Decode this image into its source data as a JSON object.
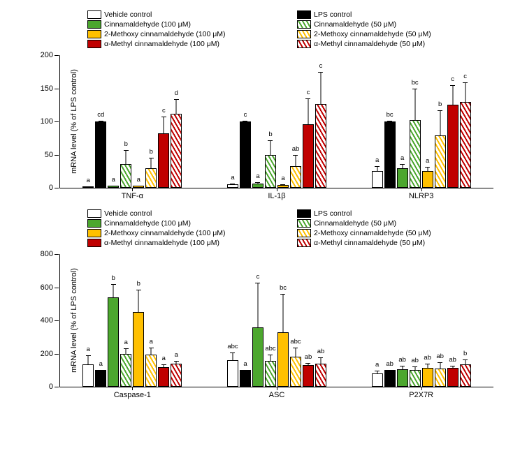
{
  "series": [
    {
      "name": "Vehicle control",
      "fill": "#ffffff",
      "hatch": false,
      "hatchColor": "#000000"
    },
    {
      "name": "LPS control",
      "fill": "#000000",
      "hatch": false,
      "hatchColor": "#000000"
    },
    {
      "name": "Cinnamaldehyde (100 μM)",
      "fill": "#4ca72e",
      "hatch": false,
      "hatchColor": "#4ca72e"
    },
    {
      "name": "Cinnamaldehyde (50 μM)",
      "fill": "#ffffff",
      "hatch": true,
      "hatchColor": "#4ca72e"
    },
    {
      "name": "2-Methoxy cinnamaldehyde (100 μM)",
      "fill": "#ffc000",
      "hatch": false,
      "hatchColor": "#ffc000"
    },
    {
      "name": "2-Methoxy cinnamaldehyde (50 μM)",
      "fill": "#ffffff",
      "hatch": true,
      "hatchColor": "#ffc000"
    },
    {
      "name": "α-Methyl cinnamaldehyde (100 μM)",
      "fill": "#c00000",
      "hatch": false,
      "hatchColor": "#c00000"
    },
    {
      "name": "α-Methyl cinnamaldehyde (50 μM)",
      "fill": "#ffffff",
      "hatch": true,
      "hatchColor": "#c00000"
    }
  ],
  "legendOrder": [
    0,
    1,
    2,
    3,
    4,
    5,
    6,
    7
  ],
  "panels": [
    {
      "ylabel": "mRNA level (% of LPS control)",
      "ymax": 200,
      "ystep": 50,
      "plotHeight": 190,
      "plotWidth": 620,
      "barWidth": 16,
      "categories": [
        {
          "label": "TNF-α",
          "bars": [
            {
              "v": 2,
              "e": 1,
              "a": "a"
            },
            {
              "v": 100,
              "e": 2,
              "a": "cd"
            },
            {
              "v": 3,
              "e": 1,
              "a": "a"
            },
            {
              "v": 36,
              "e": 22,
              "a": "b"
            },
            {
              "v": 3,
              "e": 1,
              "a": "a"
            },
            {
              "v": 29,
              "e": 17,
              "a": "b"
            },
            {
              "v": 82,
              "e": 26,
              "a": "c"
            },
            {
              "v": 112,
              "e": 23,
              "a": "d"
            }
          ]
        },
        {
          "label": "IL-1β",
          "bars": [
            {
              "v": 5,
              "e": 2,
              "a": "a"
            },
            {
              "v": 100,
              "e": 2,
              "a": "c"
            },
            {
              "v": 6,
              "e": 3,
              "a": "a"
            },
            {
              "v": 49,
              "e": 24,
              "a": "b"
            },
            {
              "v": 4,
              "e": 2,
              "a": "a"
            },
            {
              "v": 33,
              "e": 18,
              "a": "ab"
            },
            {
              "v": 96,
              "e": 40,
              "a": "c"
            },
            {
              "v": 126,
              "e": 50,
              "a": "c"
            }
          ]
        },
        {
          "label": "NLRP3",
          "bars": [
            {
              "v": 25,
              "e": 9,
              "a": "a"
            },
            {
              "v": 100,
              "e": 2,
              "a": "bc"
            },
            {
              "v": 29,
              "e": 8,
              "a": "a"
            },
            {
              "v": 102,
              "e": 49,
              "a": "bc"
            },
            {
              "v": 25,
              "e": 8,
              "a": "a"
            },
            {
              "v": 79,
              "e": 39,
              "a": "b"
            },
            {
              "v": 125,
              "e": 31,
              "a": "c"
            },
            {
              "v": 129,
              "e": 31,
              "a": "c"
            }
          ]
        }
      ]
    },
    {
      "ylabel": "mRNA level (% of LPS control)",
      "ymax": 800,
      "ystep": 200,
      "plotHeight": 190,
      "plotWidth": 620,
      "barWidth": 16,
      "categories": [
        {
          "label": "Caspase-1",
          "bars": [
            {
              "v": 135,
              "e": 60,
              "a": "a"
            },
            {
              "v": 100,
              "e": 5,
              "a": "a"
            },
            {
              "v": 540,
              "e": 85,
              "a": "b"
            },
            {
              "v": 198,
              "e": 38,
              "a": "a"
            },
            {
              "v": 450,
              "e": 140,
              "a": "b"
            },
            {
              "v": 193,
              "e": 48,
              "a": "a"
            },
            {
              "v": 120,
              "e": 20,
              "a": "a"
            },
            {
              "v": 137,
              "e": 25,
              "a": "a"
            }
          ]
        },
        {
          "label": "ASC",
          "bars": [
            {
              "v": 160,
              "e": 50,
              "a": "abc"
            },
            {
              "v": 100,
              "e": 5,
              "a": "a"
            },
            {
              "v": 360,
              "e": 270,
              "a": "c"
            },
            {
              "v": 155,
              "e": 45,
              "a": "abc"
            },
            {
              "v": 330,
              "e": 235,
              "a": "bc"
            },
            {
              "v": 180,
              "e": 60,
              "a": "abc"
            },
            {
              "v": 132,
              "e": 15,
              "a": "ab"
            },
            {
              "v": 140,
              "e": 40,
              "a": "ab"
            }
          ]
        },
        {
          "label": "P2X7R",
          "bars": [
            {
              "v": 82,
              "e": 20,
              "a": "a"
            },
            {
              "v": 100,
              "e": 5,
              "a": "ab"
            },
            {
              "v": 105,
              "e": 24,
              "a": "ab"
            },
            {
              "v": 100,
              "e": 25,
              "a": "ab"
            },
            {
              "v": 112,
              "e": 30,
              "a": "ab"
            },
            {
              "v": 110,
              "e": 40,
              "a": "ab"
            },
            {
              "v": 112,
              "e": 20,
              "a": "ab"
            },
            {
              "v": 135,
              "e": 35,
              "a": "b"
            }
          ]
        }
      ]
    }
  ]
}
